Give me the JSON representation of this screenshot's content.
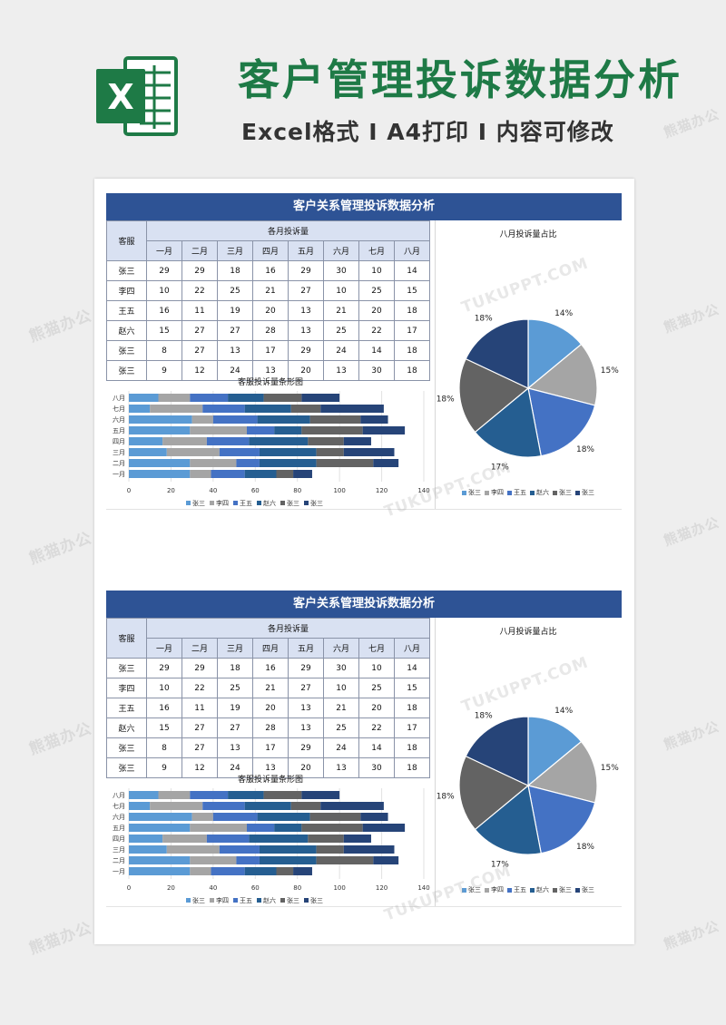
{
  "header": {
    "title": "客户管理投诉数据分析",
    "subtitle": "Excel格式 I A4打印 I 内容可修改",
    "logo_letter": "X"
  },
  "watermarks": [
    "TUKUPPT.COM",
    "TUKUPPT.COM",
    "TUKUPPT.COM",
    "TUKUPPT.COM",
    "熊猫办公",
    "熊猫办公",
    "熊猫办公",
    "熊猫办公",
    "熊猫办公",
    "熊猫办公"
  ],
  "colors": {
    "excel_green": "#1e7a46",
    "title_bar": "#2e5395",
    "header_cell": "#d9e1f2",
    "series": [
      "#5b9bd5",
      "#a5a5a5",
      "#4472c4",
      "#255e91",
      "#636363",
      "#264478"
    ]
  },
  "sheet": {
    "title": "客户关系管理投诉数据分析",
    "col_kefu": "客服",
    "group_label": "各月投诉量",
    "months": [
      "一月",
      "二月",
      "三月",
      "四月",
      "五月",
      "六月",
      "七月",
      "八月"
    ],
    "rows": [
      {
        "name": "张三",
        "values": [
          29,
          29,
          18,
          16,
          29,
          30,
          10,
          14
        ]
      },
      {
        "name": "李四",
        "values": [
          10,
          22,
          25,
          21,
          27,
          10,
          25,
          15
        ]
      },
      {
        "name": "王五",
        "values": [
          16,
          11,
          19,
          20,
          13,
          21,
          20,
          18
        ]
      },
      {
        "name": "赵六",
        "values": [
          15,
          27,
          27,
          28,
          13,
          25,
          22,
          17
        ]
      },
      {
        "name": "张三",
        "values": [
          8,
          27,
          13,
          17,
          29,
          24,
          14,
          18
        ]
      },
      {
        "name": "张三",
        "values": [
          9,
          12,
          24,
          13,
          20,
          13,
          30,
          18
        ]
      }
    ],
    "bar_chart_title": "客服投诉量条形图",
    "pie_chart_title": "八月投诉量占比"
  },
  "chart_data": [
    {
      "type": "bar",
      "orientation": "horizontal",
      "stacked": true,
      "title": "客服投诉量条形图",
      "categories": [
        "一月",
        "二月",
        "三月",
        "四月",
        "五月",
        "六月",
        "七月",
        "八月"
      ],
      "series": [
        {
          "name": "张三",
          "values": [
            29,
            29,
            18,
            16,
            29,
            30,
            10,
            14
          ]
        },
        {
          "name": "李四",
          "values": [
            10,
            22,
            25,
            21,
            27,
            10,
            25,
            15
          ]
        },
        {
          "name": "王五",
          "values": [
            16,
            11,
            19,
            20,
            13,
            21,
            20,
            18
          ]
        },
        {
          "name": "赵六",
          "values": [
            15,
            27,
            27,
            28,
            13,
            25,
            22,
            17
          ]
        },
        {
          "name": "张三",
          "values": [
            8,
            27,
            13,
            17,
            29,
            24,
            14,
            18
          ]
        },
        {
          "name": "张三",
          "values": [
            9,
            12,
            24,
            13,
            20,
            13,
            30,
            18
          ]
        }
      ],
      "xlim": [
        0,
        140
      ],
      "xticks": [
        0,
        20,
        40,
        60,
        80,
        100,
        120,
        140
      ],
      "grid": true,
      "legend": "bottom"
    },
    {
      "type": "pie",
      "title": "八月投诉量占比",
      "labels": [
        "张三",
        "李四",
        "王五",
        "赵六",
        "张三",
        "张三"
      ],
      "values": [
        14,
        15,
        18,
        17,
        18,
        18
      ],
      "percent_labels": [
        "14%",
        "15%",
        "18%",
        "17%",
        "18%",
        "18%"
      ],
      "legend": "bottom"
    }
  ]
}
